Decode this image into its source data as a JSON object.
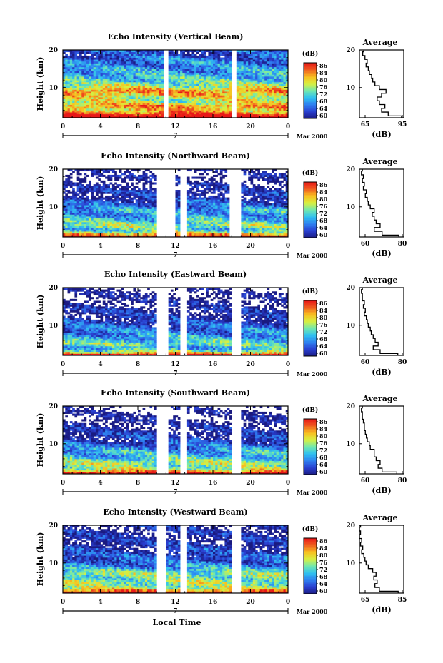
{
  "chart_data": [
    {
      "type": "heatmap",
      "title": "Echo Intensity (Vertical Beam)",
      "xlabel": "",
      "ylabel": "Height (km)",
      "x_ticks": [
        "0",
        "4",
        "8",
        "12",
        "16",
        "20",
        "0"
      ],
      "xlim": [
        0,
        24
      ],
      "y_ticks": [
        "20",
        "10"
      ],
      "ylim": [
        2,
        20
      ],
      "date_mark": "7",
      "date_label": "Mar 2000",
      "colorbar": {
        "label": "(dB)",
        "ticks": [
          "86",
          "84",
          "80",
          "76",
          "72",
          "68",
          "64",
          "60"
        ],
        "range": [
          60,
          88
        ]
      },
      "gaps": [
        [
          10.8,
          11.2
        ],
        [
          18.0,
          18.4
        ]
      ],
      "profile": {
        "title": "Average",
        "xlabel": "(dB)",
        "x_ticks": [
          "65",
          "95"
        ],
        "xlim": [
          60,
          100
        ],
        "y_ticks": [
          "20",
          "10"
        ],
        "ylim": [
          2,
          20
        ],
        "heights": [
          2,
          3,
          4,
          5,
          6,
          7,
          8,
          9,
          10,
          11,
          12,
          13,
          14,
          15,
          16,
          17,
          18,
          19,
          20
        ],
        "values": [
          98,
          86,
          80,
          83,
          78,
          76,
          80,
          84,
          78,
          74,
          72,
          71,
          69,
          68,
          66,
          67,
          65,
          63,
          64
        ]
      }
    },
    {
      "type": "heatmap",
      "title": "Echo Intensity (Northward Beam)",
      "xlabel": "",
      "ylabel": "Height (km)",
      "x_ticks": [
        "0",
        "4",
        "8",
        "12",
        "16",
        "20",
        "0"
      ],
      "xlim": [
        0,
        24
      ],
      "y_ticks": [
        "20",
        "10"
      ],
      "ylim": [
        2,
        20
      ],
      "date_mark": "7",
      "date_label": "Mar 2000",
      "colorbar": {
        "label": "(dB)",
        "ticks": [
          "86",
          "84",
          "80",
          "76",
          "72",
          "68",
          "64",
          "60"
        ],
        "range": [
          60,
          88
        ]
      },
      "gaps": [
        [
          10.0,
          12.0
        ],
        [
          12.6,
          13.3
        ],
        [
          17.8,
          19.0
        ]
      ],
      "profile": {
        "title": "Average",
        "xlabel": "(dB)",
        "x_ticks": [
          "60",
          "80"
        ],
        "xlim": [
          55,
          100
        ],
        "y_ticks": [
          "20",
          "10"
        ],
        "ylim": [
          2,
          20
        ],
        "heights": [
          2,
          3,
          4,
          5,
          6,
          7,
          8,
          9,
          10,
          11,
          12,
          13,
          14,
          15,
          16,
          17,
          18,
          19,
          20
        ],
        "values": [
          95,
          78,
          70,
          76,
          72,
          70,
          68,
          70,
          66,
          64,
          63,
          61,
          62,
          59,
          60,
          58,
          59,
          57,
          58
        ]
      }
    },
    {
      "type": "heatmap",
      "title": "Echo Intensity (Eastward Beam)",
      "xlabel": "",
      "ylabel": "Height (km)",
      "x_ticks": [
        "0",
        "4",
        "8",
        "12",
        "16",
        "20",
        "0"
      ],
      "xlim": [
        0,
        24
      ],
      "y_ticks": [
        "20",
        "10"
      ],
      "ylim": [
        2,
        20
      ],
      "date_mark": "7",
      "date_label": "Mar 2000",
      "colorbar": {
        "label": "(dB)",
        "ticks": [
          "86",
          "84",
          "80",
          "76",
          "72",
          "68",
          "64",
          "60"
        ],
        "range": [
          60,
          88
        ]
      },
      "gaps": [
        [
          10.0,
          11.2
        ],
        [
          12.6,
          13.3
        ],
        [
          18.0,
          19.0
        ]
      ],
      "profile": {
        "title": "Average",
        "xlabel": "(dB)",
        "x_ticks": [
          "60",
          "80"
        ],
        "xlim": [
          55,
          100
        ],
        "y_ticks": [
          "20",
          "10"
        ],
        "ylim": [
          2,
          20
        ],
        "heights": [
          2,
          3,
          4,
          5,
          6,
          7,
          8,
          9,
          10,
          11,
          12,
          13,
          14,
          15,
          16,
          17,
          18,
          19,
          20
        ],
        "values": [
          94,
          76,
          69,
          74,
          71,
          69,
          67,
          66,
          64,
          63,
          62,
          60,
          61,
          59,
          60,
          58,
          58,
          57,
          58
        ]
      }
    },
    {
      "type": "heatmap",
      "title": "Echo Intensity (Southward Beam)",
      "xlabel": "",
      "ylabel": "Height (km)",
      "x_ticks": [
        "0",
        "4",
        "8",
        "12",
        "16",
        "20",
        "0"
      ],
      "xlim": [
        0,
        24
      ],
      "y_ticks": [
        "20",
        "10"
      ],
      "ylim": [
        2,
        20
      ],
      "date_mark": "7",
      "date_label": "Mar 2000",
      "colorbar": {
        "label": "(dB)",
        "ticks": [
          "86",
          "84",
          "80",
          "76",
          "72",
          "68",
          "64",
          "60"
        ],
        "range": [
          60,
          88
        ]
      },
      "gaps": [
        [
          10.0,
          11.2
        ],
        [
          12.4,
          13.3
        ],
        [
          18.0,
          19.0
        ]
      ],
      "profile": {
        "title": "Average",
        "xlabel": "(dB)",
        "x_ticks": [
          "60",
          "80"
        ],
        "xlim": [
          55,
          100
        ],
        "y_ticks": [
          "20",
          "10"
        ],
        "ylim": [
          2,
          20
        ],
        "heights": [
          2,
          3,
          4,
          5,
          6,
          7,
          8,
          9,
          10,
          11,
          12,
          13,
          14,
          15,
          16,
          17,
          18,
          19,
          20
        ],
        "values": [
          93,
          78,
          74,
          76,
          72,
          70,
          70,
          66,
          65,
          63,
          62,
          61,
          60,
          60,
          59,
          58,
          58,
          57,
          58
        ]
      }
    },
    {
      "type": "heatmap",
      "title": "Echo Intensity (Westward Beam)",
      "xlabel": "Local Time",
      "ylabel": "Height (km)",
      "x_ticks": [
        "0",
        "4",
        "8",
        "12",
        "16",
        "20",
        "0"
      ],
      "xlim": [
        0,
        24
      ],
      "y_ticks": [
        "20",
        "10"
      ],
      "ylim": [
        2,
        20
      ],
      "date_mark": "7",
      "date_label": "Mar 2000",
      "colorbar": {
        "label": "(dB)",
        "ticks": [
          "86",
          "84",
          "80",
          "76",
          "72",
          "68",
          "64",
          "60"
        ],
        "range": [
          60,
          88
        ]
      },
      "gaps": [
        [
          10.0,
          11.0
        ],
        [
          12.6,
          13.3
        ],
        [
          18.0,
          19.0
        ]
      ],
      "profile": {
        "title": "Average",
        "xlabel": "(dB)",
        "x_ticks": [
          "65",
          "85"
        ],
        "xlim": [
          60,
          100
        ],
        "y_ticks": [
          "20",
          "10"
        ],
        "ylim": [
          2,
          20
        ],
        "heights": [
          2,
          3,
          4,
          5,
          6,
          7,
          8,
          9,
          10,
          11,
          12,
          13,
          14,
          15,
          16,
          17,
          18,
          19,
          20
        ],
        "values": [
          95,
          78,
          74,
          76,
          73,
          75,
          72,
          68,
          66,
          65,
          64,
          62,
          63,
          61,
          62,
          60,
          61,
          60,
          61
        ]
      }
    }
  ],
  "colors": {
    "background": "#ffffff",
    "frame": "#000000",
    "colormap": [
      "#1a1a80",
      "#2a3fd0",
      "#2e7ff0",
      "#30c0f0",
      "#70e8b0",
      "#d8f040",
      "#f8c020",
      "#f06020",
      "#e81818"
    ]
  }
}
